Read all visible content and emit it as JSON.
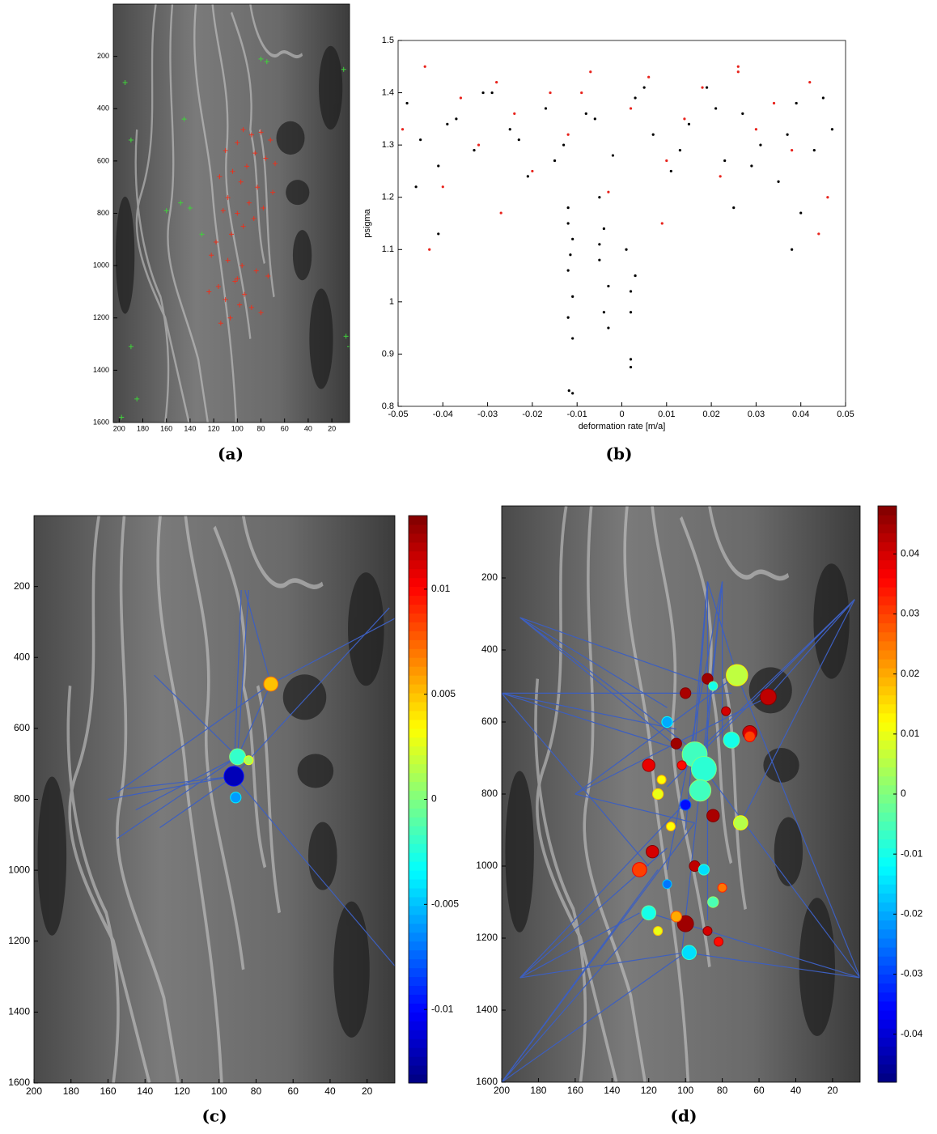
{
  "chart_data": [
    {
      "type": "image-scatter",
      "caption": "(a)",
      "xlim": [
        205,
        5
      ],
      "xticks": [
        200,
        180,
        160,
        140,
        120,
        100,
        80,
        60,
        40,
        20
      ],
      "ylim": [
        1600,
        0
      ],
      "yticks": [
        200,
        400,
        600,
        800,
        1000,
        1200,
        1400,
        1600
      ],
      "series": [
        {
          "color": "#e8321e",
          "x": [
            95,
            88,
            80,
            72,
            100,
            110,
            85,
            76,
            68,
            92,
            104,
            115,
            97,
            83,
            70,
            108,
            90,
            78,
            112,
            100,
            86,
            95,
            105,
            118,
            122,
            108,
            96,
            84,
            74,
            102,
            116,
            124,
            110,
            98,
            88,
            80,
            106,
            114,
            94,
            100
          ],
          "y": [
            480,
            500,
            490,
            520,
            530,
            560,
            570,
            590,
            610,
            620,
            640,
            660,
            680,
            700,
            720,
            740,
            760,
            780,
            790,
            800,
            820,
            850,
            880,
            910,
            960,
            980,
            1000,
            1020,
            1040,
            1060,
            1080,
            1100,
            1130,
            1150,
            1160,
            1180,
            1200,
            1220,
            1110,
            1050
          ]
        },
        {
          "color": "#3fd23a",
          "x": [
            195,
            190,
            145,
            140,
            148,
            160,
            130,
            80,
            75,
            10,
            8,
            5,
            190,
            198,
            185
          ],
          "y": [
            300,
            520,
            440,
            780,
            760,
            790,
            880,
            210,
            220,
            250,
            1270,
            1310,
            1310,
            1580,
            1510
          ]
        }
      ]
    },
    {
      "type": "scatter",
      "caption": "(b)",
      "xlabel": "deformation rate [m/a]",
      "ylabel": "psigma",
      "xlim": [
        -0.05,
        0.05
      ],
      "xticks": [
        -0.05,
        -0.04,
        -0.03,
        -0.02,
        -0.01,
        0,
        0.01,
        0.02,
        0.03,
        0.04,
        0.05
      ],
      "ylim": [
        0.8,
        1.5
      ],
      "yticks": [
        0.8,
        0.9,
        1,
        1.1,
        1.2,
        1.3,
        1.4,
        1.5
      ],
      "series": [
        {
          "color": "#e8231c",
          "x": [
            -0.049,
            -0.044,
            -0.04,
            -0.036,
            -0.032,
            -0.028,
            -0.024,
            -0.02,
            -0.016,
            -0.012,
            -0.007,
            -0.003,
            0.002,
            0.006,
            0.01,
            0.014,
            0.018,
            0.022,
            0.026,
            0.03,
            0.034,
            0.038,
            0.042,
            0.046,
            -0.043,
            -0.027,
            -0.009,
            0.009,
            0.026,
            0.044
          ],
          "y": [
            1.33,
            1.45,
            1.22,
            1.39,
            1.3,
            1.42,
            1.36,
            1.25,
            1.4,
            1.32,
            1.44,
            1.21,
            1.37,
            1.43,
            1.27,
            1.35,
            1.41,
            1.24,
            1.45,
            1.33,
            1.38,
            1.29,
            1.42,
            1.2,
            1.1,
            1.17,
            1.4,
            1.15,
            1.44,
            1.13
          ]
        },
        {
          "color": "#000000",
          "x": [
            -0.048,
            -0.045,
            -0.041,
            -0.037,
            -0.033,
            -0.029,
            -0.025,
            -0.021,
            -0.017,
            -0.013,
            -0.008,
            -0.002,
            0.003,
            0.007,
            0.011,
            0.015,
            0.019,
            0.023,
            0.027,
            0.031,
            0.035,
            0.039,
            0.043,
            0.047,
            -0.046,
            -0.039,
            -0.031,
            -0.023,
            -0.015,
            -0.006,
            0.005,
            0.013,
            0.021,
            0.029,
            0.037,
            0.045,
            -0.012,
            -0.011,
            -0.012,
            -0.011,
            -0.012,
            -0.011,
            -0.012,
            -0.0115,
            -0.0118,
            -0.011,
            -0.005,
            -0.004,
            -0.005,
            -0.003,
            -0.004,
            -0.005,
            -0.003,
            0.001,
            0.002,
            0.002,
            0.003,
            0.002,
            0.002,
            0.04,
            0.038,
            -0.041,
            0.025
          ],
          "y": [
            1.38,
            1.31,
            1.26,
            1.35,
            1.29,
            1.4,
            1.33,
            1.24,
            1.37,
            1.3,
            1.36,
            1.28,
            1.39,
            1.32,
            1.25,
            1.34,
            1.41,
            1.27,
            1.36,
            1.3,
            1.23,
            1.38,
            1.29,
            1.33,
            1.22,
            1.34,
            1.4,
            1.31,
            1.27,
            1.35,
            1.41,
            1.29,
            1.37,
            1.26,
            1.32,
            1.39,
            1.18,
            1.12,
            1.06,
            1.01,
            0.97,
            0.93,
            1.15,
            1.09,
            0.83,
            0.825,
            1.2,
            1.14,
            1.08,
            1.03,
            0.98,
            1.11,
            0.95,
            1.1,
            1.02,
            0.98,
            1.05,
            0.89,
            0.875,
            1.17,
            1.1,
            1.13,
            1.18
          ]
        }
      ]
    },
    {
      "type": "network-bubble",
      "caption": "(c)",
      "colormap": "jet",
      "edge_color": "#3d5fbf",
      "xlim": [
        200,
        5
      ],
      "xticks": [
        200,
        180,
        160,
        140,
        120,
        100,
        80,
        60,
        40,
        20
      ],
      "ylim": [
        1600,
        0
      ],
      "yticks": [
        200,
        400,
        600,
        800,
        1000,
        1200,
        1400,
        1600
      ],
      "clim": [
        -0.0135,
        0.0135
      ],
      "cticks": [
        -0.01,
        -0.005,
        0,
        0.005,
        0.01
      ],
      "edges": [
        [
          88,
          210,
          92,
          735
        ],
        [
          84,
          210,
          90,
          680
        ],
        [
          86,
          210,
          72,
          475
        ],
        [
          5,
          290,
          72,
          475
        ],
        [
          8,
          260,
          92,
          735
        ],
        [
          135,
          450,
          90,
          680
        ],
        [
          160,
          800,
          92,
          735
        ],
        [
          155,
          910,
          90,
          680
        ],
        [
          150,
          770,
          92,
          735
        ],
        [
          132,
          880,
          92,
          735
        ],
        [
          145,
          830,
          90,
          680
        ],
        [
          5,
          1270,
          92,
          735
        ],
        [
          72,
          475,
          90,
          680
        ],
        [
          155,
          780,
          72,
          475
        ]
      ],
      "x": [
        72,
        90,
        84,
        92,
        91
      ],
      "y": [
        475,
        680,
        690,
        735,
        795
      ],
      "sizes": [
        8,
        9,
        5,
        11,
        6
      ],
      "values": [
        0.005,
        -0.002,
        0.001,
        -0.012,
        -0.006
      ]
    },
    {
      "type": "network-bubble",
      "caption": "(d)",
      "colormap": "jet",
      "edge_color": "#3d5fbf",
      "xlim": [
        200,
        5
      ],
      "xticks": [
        200,
        180,
        160,
        140,
        120,
        100,
        80,
        60,
        40,
        20
      ],
      "ylim": [
        1600,
        0
      ],
      "yticks": [
        200,
        400,
        600,
        800,
        1000,
        1200,
        1400,
        1600
      ],
      "clim": [
        -0.048,
        0.048
      ],
      "cticks": [
        -0.04,
        -0.03,
        -0.02,
        -0.01,
        0,
        0.01,
        0.02,
        0.03,
        0.04
      ],
      "edges": [
        [
          200,
          1600,
          115,
          1010
        ],
        [
          200,
          1600,
          100,
          1240
        ],
        [
          200,
          1600,
          95,
          880
        ],
        [
          200,
          1600,
          120,
          1130
        ],
        [
          190,
          310,
          95,
          680
        ],
        [
          190,
          310,
          110,
          560
        ],
        [
          190,
          310,
          90,
          730
        ],
        [
          190,
          310,
          85,
          500
        ],
        [
          200,
          520,
          95,
          690
        ],
        [
          200,
          520,
          120,
          1000
        ],
        [
          200,
          520,
          105,
          620
        ],
        [
          200,
          520,
          75,
          520
        ],
        [
          190,
          1310,
          100,
          1240
        ],
        [
          190,
          1310,
          110,
          950
        ],
        [
          190,
          1310,
          92,
          780
        ],
        [
          190,
          1310,
          125,
          1130
        ],
        [
          88,
          210,
          95,
          690
        ],
        [
          88,
          210,
          88,
          1150
        ],
        [
          88,
          210,
          72,
          470
        ],
        [
          88,
          210,
          100,
          900
        ],
        [
          80,
          210,
          80,
          650
        ],
        [
          80,
          210,
          110,
          1010
        ],
        [
          80,
          210,
          90,
          730
        ],
        [
          80,
          210,
          102,
          1240
        ],
        [
          8,
          260,
          55,
          530
        ],
        [
          8,
          260,
          95,
          690
        ],
        [
          8,
          260,
          110,
          780
        ],
        [
          8,
          260,
          70,
          880
        ],
        [
          5,
          1310,
          72,
          470
        ],
        [
          5,
          1310,
          90,
          730
        ],
        [
          5,
          1310,
          120,
          1130
        ],
        [
          5,
          1310,
          100,
          1240
        ],
        [
          160,
          800,
          72,
          470
        ],
        [
          160,
          800,
          55,
          530
        ],
        [
          160,
          800,
          95,
          880
        ]
      ],
      "x": [
        72,
        88,
        55,
        85,
        100,
        78,
        65,
        110,
        95,
        90,
        105,
        120,
        92,
        75,
        65,
        102,
        113,
        115,
        85,
        100,
        70,
        108,
        118,
        95,
        90,
        80,
        125,
        120,
        100,
        105,
        98,
        88,
        115,
        85,
        82,
        110
      ],
      "y": [
        470,
        480,
        530,
        500,
        520,
        570,
        630,
        600,
        690,
        730,
        660,
        720,
        790,
        650,
        640,
        720,
        760,
        800,
        860,
        830,
        880,
        890,
        960,
        1000,
        1010,
        1060,
        1010,
        1130,
        1160,
        1140,
        1240,
        1180,
        1180,
        1100,
        1210,
        1050
      ],
      "sizes": [
        12,
        6,
        9,
        5,
        6,
        5,
        8,
        6,
        14,
        14,
        6,
        7,
        12,
        9,
        6,
        5,
        5,
        6,
        7,
        6,
        8,
        5,
        7,
        6,
        6,
        5,
        8,
        8,
        9,
        6,
        8,
        5,
        5,
        6,
        5,
        5
      ],
      "values": [
        0.006,
        0.045,
        0.042,
        -0.01,
        0.044,
        0.04,
        0.04,
        -0.02,
        -0.006,
        -0.008,
        0.045,
        0.038,
        -0.006,
        -0.01,
        0.03,
        0.035,
        0.012,
        0.01,
        0.044,
        -0.035,
        0.005,
        0.012,
        0.04,
        0.042,
        -0.015,
        0.025,
        0.03,
        -0.01,
        0.045,
        0.02,
        -0.015,
        0.04,
        0.01,
        -0.005,
        0.035,
        -0.025
      ]
    }
  ]
}
